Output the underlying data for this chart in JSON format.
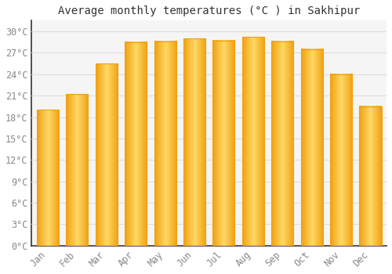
{
  "title": "Average monthly temperatures (°C ) in Sakhipur",
  "months": [
    "Jan",
    "Feb",
    "Mar",
    "Apr",
    "May",
    "Jun",
    "Jul",
    "Aug",
    "Sep",
    "Oct",
    "Nov",
    "Dec"
  ],
  "values": [
    19.0,
    21.2,
    25.5,
    28.5,
    28.6,
    29.0,
    28.7,
    29.2,
    28.6,
    27.5,
    24.0,
    19.5
  ],
  "bar_color_center": "#FFD966",
  "bar_color_edge": "#F0A010",
  "background_color": "#FFFFFF",
  "plot_bg_color": "#F5F5F5",
  "grid_color": "#DDDDDD",
  "yticks": [
    0,
    3,
    6,
    9,
    12,
    15,
    18,
    21,
    24,
    27,
    30
  ],
  "ylim": [
    0,
    31.5
  ],
  "ylabel_suffix": "°C",
  "title_fontsize": 10,
  "tick_fontsize": 8.5,
  "font_family": "monospace"
}
